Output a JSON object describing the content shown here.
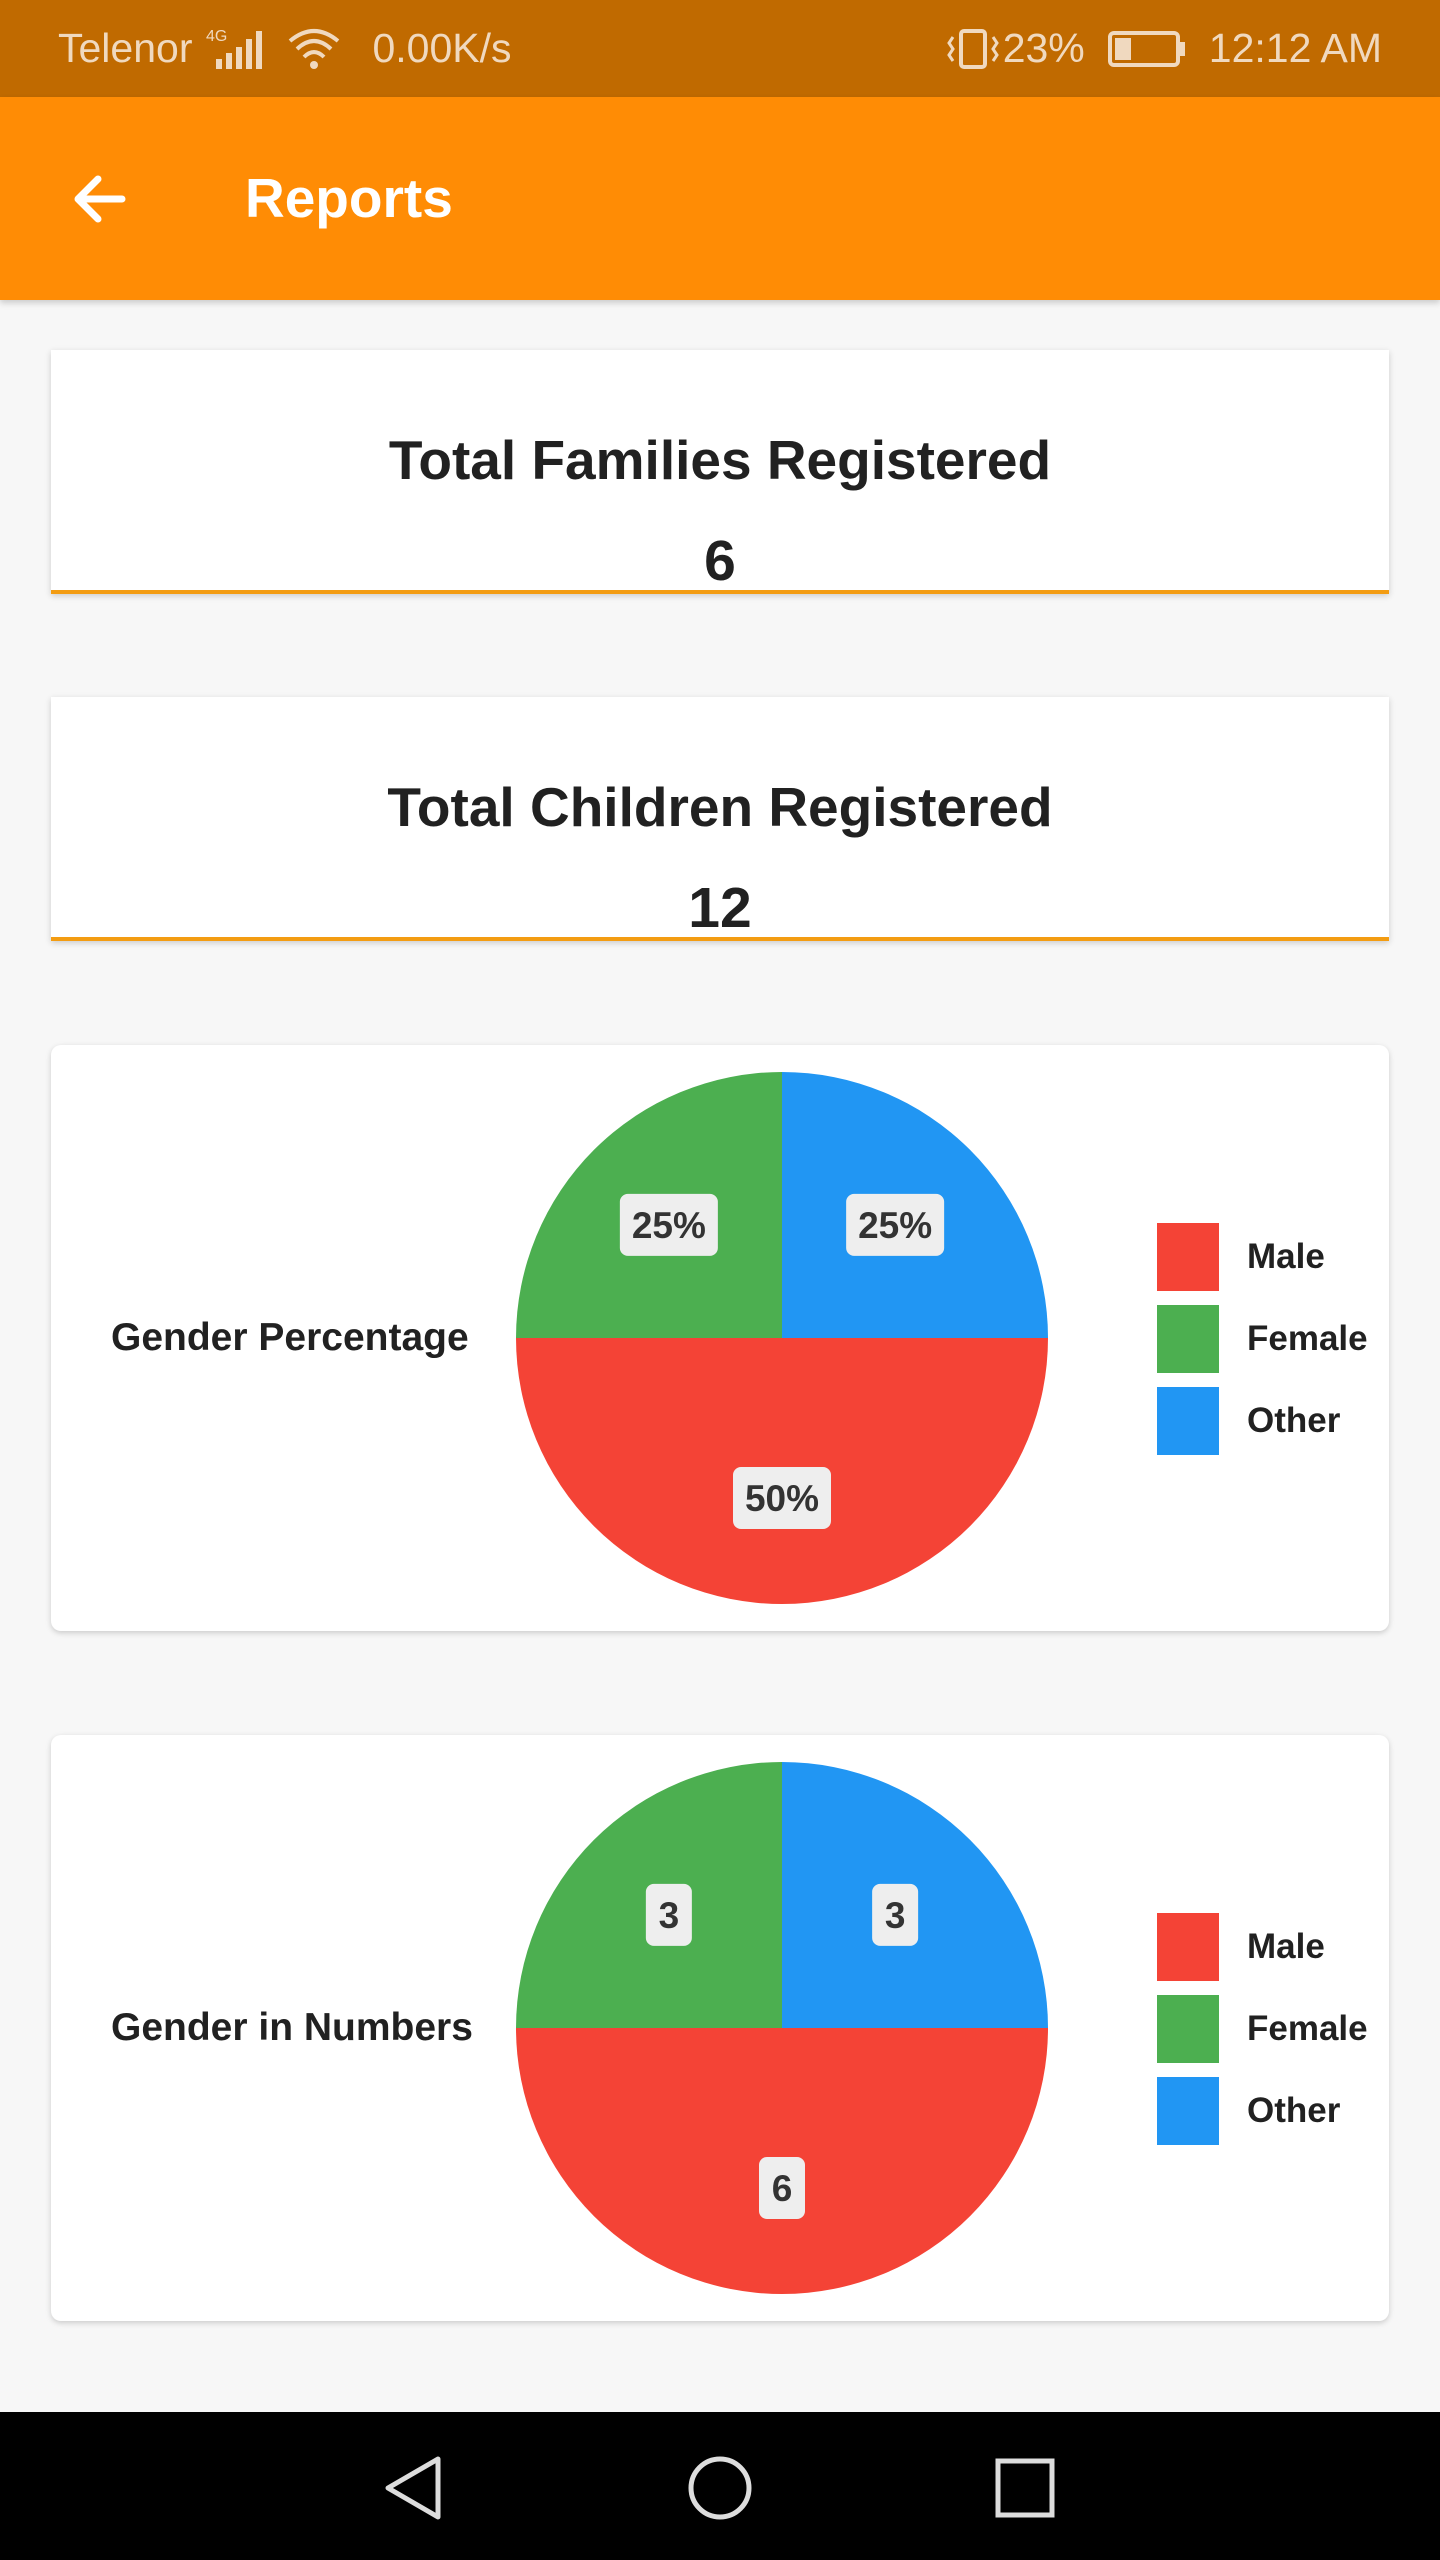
{
  "status_bar": {
    "carrier": "Telenor",
    "network_type": "4G",
    "speed": "0.00K/s",
    "battery": "23%",
    "time": "12:12 AM",
    "icons": [
      "signal-icon",
      "wifi-icon",
      "vibrate-icon",
      "battery-icon"
    ]
  },
  "app_bar": {
    "title": "Reports",
    "back_icon": "arrow-back-icon",
    "background": "#ff8c05"
  },
  "stats": {
    "families": {
      "title": "Total Families Registered",
      "value": "6"
    },
    "children": {
      "title": "Total Children Registered",
      "value": "12"
    }
  },
  "colors": {
    "male": "#f44336",
    "female": "#4caf50",
    "other": "#2196f3",
    "accent": "#f39c12"
  },
  "charts": {
    "gender_percentage": {
      "label": "Gender Percentage",
      "legend": [
        "Male",
        "Female",
        "Other"
      ]
    },
    "gender_numbers": {
      "label": "Gender in Numbers",
      "legend": [
        "Male",
        "Female",
        "Other"
      ]
    }
  },
  "chart_data": [
    {
      "type": "pie",
      "categories": [
        "Male",
        "Female",
        "Other"
      ],
      "values": [
        50,
        25,
        25
      ],
      "labels": [
        "50%",
        "25%",
        "25%"
      ],
      "colors": [
        "#f44336",
        "#4caf50",
        "#2196f3"
      ],
      "legend_position": "right"
    },
    {
      "type": "pie",
      "categories": [
        "Male",
        "Female",
        "Other"
      ],
      "values": [
        6,
        3,
        3
      ],
      "labels": [
        "6",
        "3",
        "3"
      ],
      "colors": [
        "#f44336",
        "#4caf50",
        "#2196f3"
      ],
      "legend_position": "right"
    }
  ],
  "nav_bar": {
    "icons": [
      "nav-back-icon",
      "nav-home-icon",
      "nav-recents-icon"
    ]
  }
}
